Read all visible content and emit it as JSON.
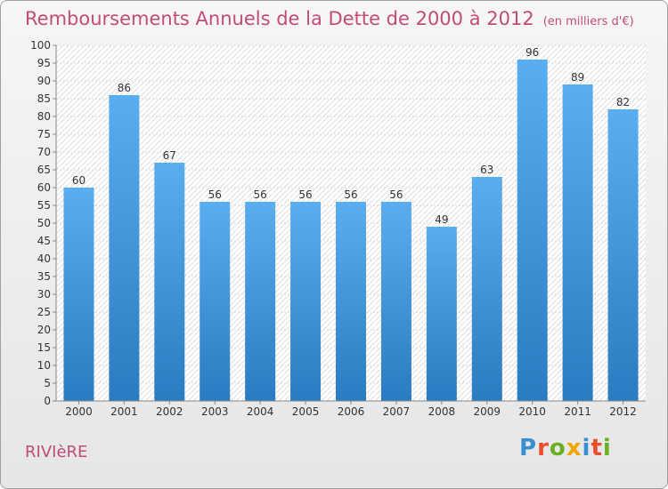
{
  "title": "Remboursements Annuels de la Dette de 2000 à 2012",
  "subtitle": "(en milliers d'€)",
  "commune": "RIVIèRE",
  "logo": {
    "text": "Proxiti",
    "colors": [
      "#3a8fd0",
      "#e84d2c",
      "#6ab023",
      "#f0a500",
      "#3a8fd0",
      "#e84d2c",
      "#6ab023"
    ]
  },
  "colors": {
    "title": "#c24b78",
    "bar_top": "#5aaef0",
    "bar_bottom": "#2a7bbf"
  },
  "chart_data": {
    "type": "bar",
    "title": "Remboursements Annuels de la Dette de 2000 à 2012",
    "categories": [
      "2000",
      "2001",
      "2002",
      "2003",
      "2004",
      "2005",
      "2006",
      "2007",
      "2008",
      "2009",
      "2010",
      "2011",
      "2012"
    ],
    "values": [
      60,
      86,
      67,
      56,
      56,
      56,
      56,
      56,
      49,
      63,
      96,
      89,
      82
    ],
    "ylim": [
      0,
      100
    ],
    "yticks": [
      0,
      5,
      10,
      15,
      20,
      25,
      30,
      35,
      40,
      45,
      50,
      55,
      60,
      65,
      70,
      75,
      80,
      85,
      90,
      95,
      100
    ],
    "grid": true,
    "xlabel": "",
    "ylabel": ""
  }
}
